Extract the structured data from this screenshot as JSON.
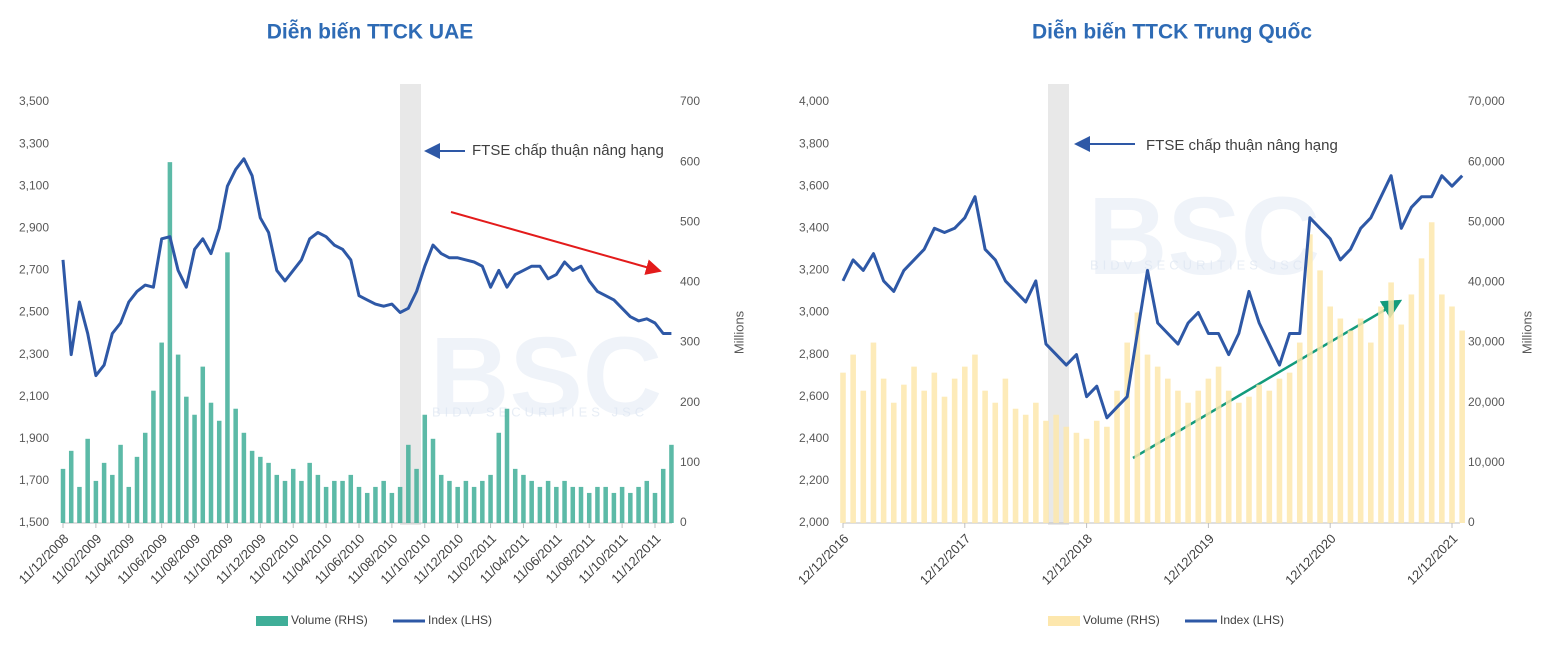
{
  "chart_data": [
    {
      "type": "bar-line",
      "title": "Diễn biến TTCK UAE",
      "annotation": "FTSE chấp thuận nâng hạng",
      "y2_label": "Millions",
      "watermark": "BSC",
      "watermark_sub": "BIDV SECURITIES JSC",
      "categories": [
        "11/12/2008",
        null,
        null,
        null,
        "11/02/2009",
        null,
        null,
        null,
        "11/04/2009",
        null,
        null,
        null,
        "11/06/2009",
        null,
        null,
        null,
        "11/08/2009",
        null,
        null,
        null,
        "11/10/2009",
        null,
        null,
        null,
        "11/12/2009",
        null,
        null,
        null,
        "11/02/2010",
        null,
        null,
        null,
        "11/04/2010",
        null,
        null,
        null,
        "11/06/2010",
        null,
        null,
        null,
        "11/08/2010",
        null,
        null,
        null,
        "11/10/2010",
        null,
        null,
        null,
        "11/12/2010",
        null,
        null,
        null,
        "11/02/2011",
        null,
        null,
        null,
        "11/04/2011",
        null,
        null,
        null,
        "11/06/2011",
        null,
        null,
        null,
        "11/08/2011",
        null,
        null,
        null,
        "11/10/2011",
        null,
        null,
        null,
        "11/12/2011",
        null,
        null
      ],
      "series": [
        {
          "name": "Volume (RHS)",
          "kind": "bar",
          "axis": "y2",
          "color": "#3fae98",
          "values": [
            90,
            120,
            60,
            140,
            70,
            100,
            80,
            130,
            60,
            110,
            150,
            220,
            300,
            600,
            280,
            210,
            180,
            260,
            200,
            170,
            450,
            190,
            150,
            120,
            110,
            100,
            80,
            70,
            90,
            70,
            100,
            80,
            60,
            70,
            70,
            80,
            60,
            50,
            60,
            70,
            50,
            60,
            130,
            90,
            180,
            140,
            80,
            70,
            60,
            70,
            60,
            70,
            80,
            150,
            190,
            90,
            80,
            70,
            60,
            70,
            60,
            70,
            60,
            60,
            50,
            60,
            60,
            50,
            60,
            50,
            60,
            70,
            50,
            90,
            130
          ]
        },
        {
          "name": "Index (LHS)",
          "kind": "line",
          "axis": "y",
          "color": "#2e58a6",
          "values": [
            2750,
            2300,
            2550,
            2400,
            2200,
            2250,
            2400,
            2450,
            2550,
            2600,
            2630,
            2620,
            2850,
            2860,
            2700,
            2620,
            2800,
            2850,
            2780,
            2900,
            3100,
            3180,
            3230,
            3150,
            2950,
            2880,
            2700,
            2650,
            2700,
            2750,
            2850,
            2880,
            2860,
            2820,
            2800,
            2750,
            2580,
            2560,
            2540,
            2530,
            2540,
            2500,
            2520,
            2600,
            2720,
            2820,
            2780,
            2760,
            2760,
            2750,
            2740,
            2720,
            2620,
            2700,
            2620,
            2680,
            2700,
            2720,
            2720,
            2660,
            2680,
            2740,
            2700,
            2720,
            2650,
            2600,
            2580,
            2560,
            2520,
            2480,
            2460,
            2470,
            2450,
            2400,
            2400
          ]
        }
      ],
      "ylim": [
        1500,
        3500
      ],
      "yticks": [
        {
          "value": 1500,
          "label": "1,500"
        },
        {
          "value": 1700,
          "label": "1,700"
        },
        {
          "value": 1900,
          "label": "1,900"
        },
        {
          "value": 2100,
          "label": "2,100"
        },
        {
          "value": 2300,
          "label": "2,300"
        },
        {
          "value": 2500,
          "label": "2,500"
        },
        {
          "value": 2700,
          "label": "2,700"
        },
        {
          "value": 2900,
          "label": "2,900"
        },
        {
          "value": 3100,
          "label": "3,100"
        },
        {
          "value": 3300,
          "label": "3,300"
        },
        {
          "value": 3500,
          "label": "3,500"
        }
      ],
      "y2lim": [
        0,
        700
      ],
      "y2ticks": [
        0,
        100,
        200,
        300,
        400,
        500,
        600,
        700
      ]
    },
    {
      "type": "bar-line",
      "title": "Diễn biến TTCK Trung Quốc",
      "annotation": "FTSE chấp thuận nâng hạng",
      "y2_label": "Millions",
      "watermark": "BSC",
      "watermark_sub": "BIDV SECURITIES JSC",
      "categories": [
        "12/12/2016",
        null,
        null,
        null,
        null,
        null,
        null,
        null,
        null,
        null,
        null,
        null,
        "12/12/2017",
        null,
        null,
        null,
        null,
        null,
        null,
        null,
        null,
        null,
        null,
        null,
        "12/12/2018",
        null,
        null,
        null,
        null,
        null,
        null,
        null,
        null,
        null,
        null,
        null,
        "12/12/2019",
        null,
        null,
        null,
        null,
        null,
        null,
        null,
        null,
        null,
        null,
        null,
        "12/12/2020",
        null,
        null,
        null,
        null,
        null,
        null,
        null,
        null,
        null,
        null,
        null,
        "12/12/2021",
        null
      ],
      "series": [
        {
          "name": "Volume (RHS)",
          "kind": "bar",
          "axis": "y2",
          "color": "#fde7ad",
          "values": [
            25000,
            28000,
            22000,
            30000,
            24000,
            20000,
            23000,
            26000,
            22000,
            25000,
            21000,
            24000,
            26000,
            28000,
            22000,
            20000,
            24000,
            19000,
            18000,
            20000,
            17000,
            18000,
            16000,
            15000,
            14000,
            17000,
            16000,
            22000,
            30000,
            35000,
            28000,
            26000,
            24000,
            22000,
            20000,
            22000,
            24000,
            26000,
            22000,
            20000,
            21000,
            23000,
            22000,
            24000,
            25000,
            30000,
            48000,
            42000,
            36000,
            34000,
            32000,
            34000,
            30000,
            36000,
            40000,
            33000,
            38000,
            44000,
            50000,
            38000,
            36000,
            32000
          ]
        },
        {
          "name": "Index (LHS)",
          "kind": "line",
          "axis": "y",
          "color": "#2e58a6",
          "values": [
            3150,
            3250,
            3200,
            3280,
            3150,
            3100,
            3200,
            3250,
            3300,
            3400,
            3380,
            3400,
            3450,
            3550,
            3300,
            3250,
            3150,
            3100,
            3050,
            3150,
            2850,
            2800,
            2750,
            2800,
            2600,
            2650,
            2500,
            2550,
            2600,
            2900,
            3200,
            2950,
            2900,
            2850,
            2950,
            3000,
            2900,
            2900,
            2800,
            2900,
            3100,
            2950,
            2850,
            2750,
            2900,
            2900,
            3450,
            3400,
            3350,
            3250,
            3300,
            3400,
            3450,
            3550,
            3650,
            3400,
            3500,
            3550,
            3550,
            3650,
            3600,
            3650
          ]
        }
      ],
      "ylim": [
        2000,
        4000
      ],
      "yticks": [
        {
          "value": 2000,
          "label": "2,000"
        },
        {
          "value": 2200,
          "label": "2,200"
        },
        {
          "value": 2400,
          "label": "2,400"
        },
        {
          "value": 2600,
          "label": "2,600"
        },
        {
          "value": 2800,
          "label": "2,800"
        },
        {
          "value": 3000,
          "label": "3,000"
        },
        {
          "value": 3200,
          "label": "3,200"
        },
        {
          "value": 3400,
          "label": "3,400"
        },
        {
          "value": 3600,
          "label": "3,600"
        },
        {
          "value": 3800,
          "label": "3,800"
        },
        {
          "value": 4000,
          "label": "4,000"
        }
      ],
      "y2lim": [
        0,
        70000
      ],
      "y2ticks": [
        0,
        {
          "value": 10000,
          "label": "10,000"
        },
        {
          "value": 20000,
          "label": "20,000"
        },
        {
          "value": 30000,
          "label": "30,000"
        },
        {
          "value": 40000,
          "label": "40,000"
        },
        {
          "value": 50000,
          "label": "50,000"
        },
        {
          "value": 60000,
          "label": "60,000"
        },
        {
          "value": 70000,
          "label": "70,000"
        }
      ]
    }
  ]
}
